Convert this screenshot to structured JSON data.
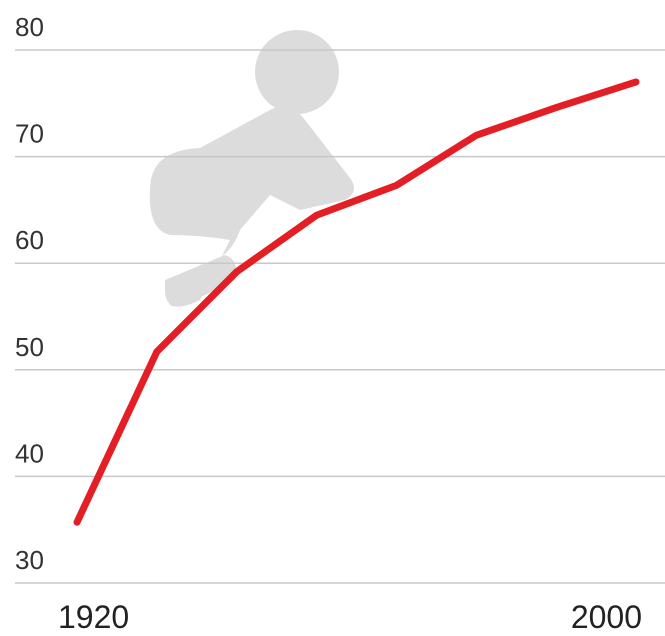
{
  "chart_data": {
    "type": "line",
    "categories": [
      "1920",
      null,
      null,
      null,
      null,
      null,
      null,
      "2000"
    ],
    "series": [
      {
        "color": "#e31e24",
        "values": [
          35.7,
          51.7,
          59.2,
          64.5,
          67.3,
          72.0,
          74.6,
          77.0
        ]
      }
    ],
    "ylim": [
      30,
      80
    ],
    "yticks": [
      30,
      40,
      50,
      60,
      70,
      80
    ],
    "grid": true
  }
}
